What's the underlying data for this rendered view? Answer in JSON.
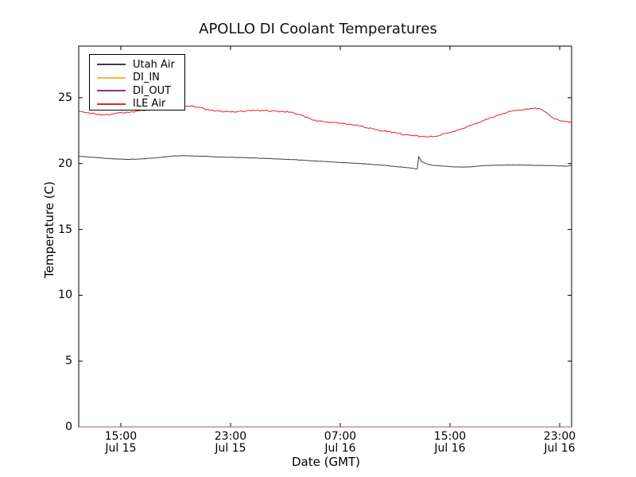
{
  "figure": {
    "background": "#ffffff",
    "spine_color": "#000000",
    "text_color": "#000000"
  },
  "chart_data": {
    "type": "line",
    "title": "APOLLO DI Coolant Temperatures",
    "xlabel": "Date (GMT)",
    "ylabel": "Temperature (C)",
    "x_unit": "hours since Jul 15 00:00 GMT",
    "xlim": [
      11.93,
      47.87
    ],
    "ylim": [
      0,
      28.92
    ],
    "grid": false,
    "yticks": [
      0,
      5,
      10,
      15,
      20,
      25
    ],
    "xticks": [
      {
        "hour": 15,
        "line1": "15:00",
        "line2": "Jul 15"
      },
      {
        "hour": 23,
        "line1": "23:00",
        "line2": "Jul 15"
      },
      {
        "hour": 31,
        "line1": "07:00",
        "line2": "Jul 16"
      },
      {
        "hour": 39,
        "line1": "15:00",
        "line2": "Jul 16"
      },
      {
        "hour": 47,
        "line1": "23:00",
        "line2": "Jul 16"
      }
    ],
    "legend": {
      "position": "upper left",
      "entries": [
        "Utah Air",
        "DI_IN",
        "DI_OUT",
        "ILE Air"
      ]
    },
    "series": [
      {
        "name": "Utah Air",
        "color": "#3d3d3d",
        "noise": 0.012,
        "opacity": 1,
        "x": [
          11.93,
          12.6,
          13.3,
          14.3,
          15.3,
          16.0,
          16.6,
          17.8,
          18.8,
          19.5,
          20.3,
          21.1,
          22.0,
          23.0,
          24.2,
          25.3,
          26.4,
          27.6,
          28.5,
          29.4,
          30.3,
          31.1,
          32.0,
          32.9,
          33.8,
          34.6,
          35.3,
          35.8,
          36.3,
          36.55,
          36.62,
          36.72,
          36.9,
          37.1,
          37.45,
          37.75,
          38.4,
          39.2,
          40.0,
          40.6,
          41.0,
          41.6,
          42.2,
          43.3,
          44.5,
          45.7,
          46.8,
          47.5,
          47.87
        ],
        "y": [
          20.55,
          20.5,
          20.45,
          20.37,
          20.32,
          20.33,
          20.36,
          20.46,
          20.57,
          20.6,
          20.58,
          20.55,
          20.5,
          20.48,
          20.44,
          20.4,
          20.35,
          20.3,
          20.24,
          20.18,
          20.13,
          20.08,
          20.03,
          19.97,
          19.9,
          19.82,
          19.75,
          19.7,
          19.64,
          19.6,
          19.62,
          20.52,
          20.2,
          20.05,
          19.93,
          19.87,
          19.81,
          19.76,
          19.73,
          19.76,
          19.81,
          19.85,
          19.87,
          19.9,
          19.88,
          19.86,
          19.83,
          19.8,
          19.86
        ]
      },
      {
        "name": "DI_IN",
        "color": "#ffb343",
        "noise": 0,
        "opacity": 0.9,
        "x": [
          11.93,
          47.87
        ],
        "y": [
          0,
          0
        ]
      },
      {
        "name": "DI_OUT",
        "color": "#8f2f96",
        "noise": 0,
        "opacity": 0.7,
        "x": [
          11.93,
          47.87
        ],
        "y": [
          0,
          0
        ]
      },
      {
        "name": "ILE Air",
        "color": "#f11d1d",
        "noise": 0.05,
        "opacity": 1,
        "x": [
          11.93,
          12.3,
          12.9,
          13.4,
          14.0,
          14.5,
          15.2,
          16.1,
          17.2,
          18.2,
          18.9,
          19.6,
          20.1,
          20.7,
          21.2,
          21.8,
          22.4,
          23.0,
          23.7,
          24.4,
          25.1,
          25.8,
          26.5,
          27.1,
          27.7,
          28.2,
          28.8,
          29.4,
          30.0,
          30.6,
          31.2,
          31.9,
          32.6,
          33.2,
          33.8,
          34.4,
          35.0,
          35.6,
          36.2,
          36.9,
          37.5,
          38.0,
          38.5,
          39.0,
          39.6,
          40.2,
          40.8,
          41.3,
          41.9,
          42.5,
          43.0,
          43.6,
          44.2,
          44.7,
          45.1,
          45.5,
          45.8,
          46.1,
          46.4,
          46.7,
          47.1,
          47.5,
          47.87
        ],
        "y": [
          24.0,
          23.92,
          23.8,
          23.74,
          23.7,
          23.78,
          23.88,
          23.96,
          24.1,
          24.22,
          24.3,
          24.38,
          24.36,
          24.28,
          24.12,
          24.0,
          23.95,
          23.93,
          23.97,
          24.01,
          24.03,
          24.0,
          23.97,
          23.93,
          23.82,
          23.65,
          23.4,
          23.22,
          23.15,
          23.1,
          23.03,
          22.95,
          22.83,
          22.68,
          22.55,
          22.44,
          22.33,
          22.22,
          22.13,
          22.06,
          22.05,
          22.1,
          22.22,
          22.38,
          22.55,
          22.76,
          22.98,
          23.2,
          23.45,
          23.68,
          23.85,
          23.98,
          24.08,
          24.15,
          24.2,
          24.17,
          24.05,
          23.8,
          23.55,
          23.38,
          23.25,
          23.17,
          23.1
        ]
      }
    ]
  }
}
